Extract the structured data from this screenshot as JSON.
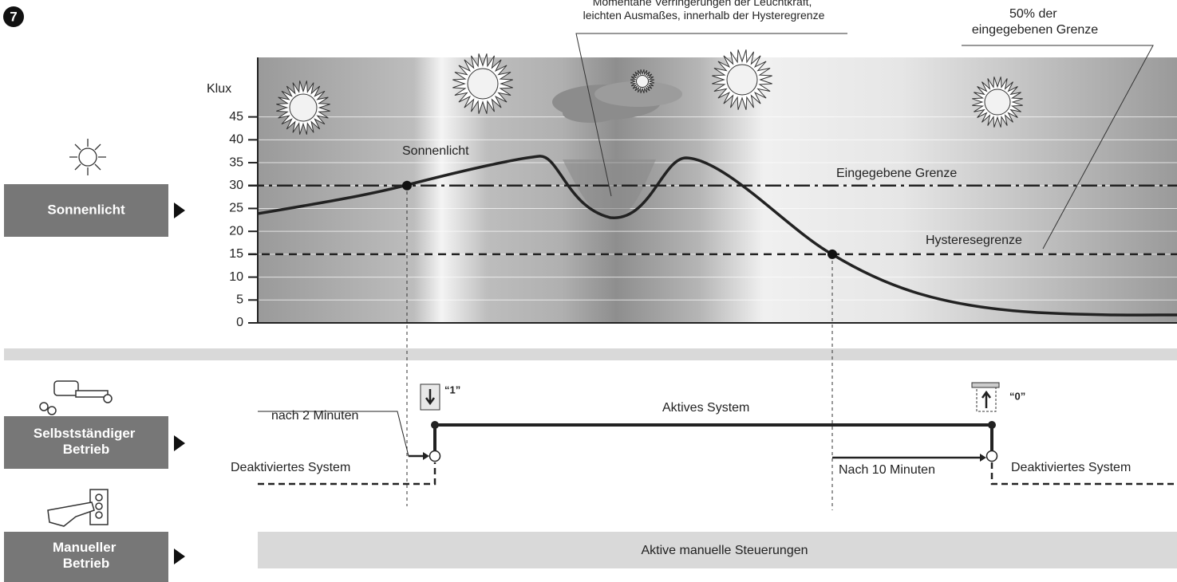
{
  "figure_number": "7",
  "rows": [
    {
      "label": [
        "Sonnenlicht"
      ]
    },
    {
      "label": [
        "Selbstständiger",
        "Betrieb"
      ]
    },
    {
      "label": [
        "Manueller",
        "Betrieb"
      ]
    }
  ],
  "chart": {
    "y_label": "Klux",
    "ylim": [
      0,
      58
    ],
    "yticks": [
      0,
      5,
      10,
      15,
      20,
      25,
      30,
      35,
      40,
      45
    ],
    "curve_label": "Sonnenlicht",
    "threshold": {
      "value": 30,
      "label": "Eingegebene Grenze"
    },
    "hysteresis": {
      "value": 15,
      "label": "Hysteresegrenze"
    },
    "annotations": [
      [
        "Momentane Verringerungen der Leuchtkraft,",
        "leichten Ausmaßes, innerhalb der Hysteregrenze"
      ],
      [
        "50% der",
        "eingegebenen Grenze"
      ]
    ]
  },
  "auto": {
    "deactivated_left": "Deaktiviertes System",
    "after_2": "nach 2 Minuten",
    "active": "Aktives System",
    "after_10": "Nach 10 Minuten",
    "deactivated_right": "Deaktiviertes System",
    "cmd_down": "“1”",
    "cmd_up": "“0”"
  },
  "manual": {
    "text": "Aktive manuelle Steuerungen"
  }
}
